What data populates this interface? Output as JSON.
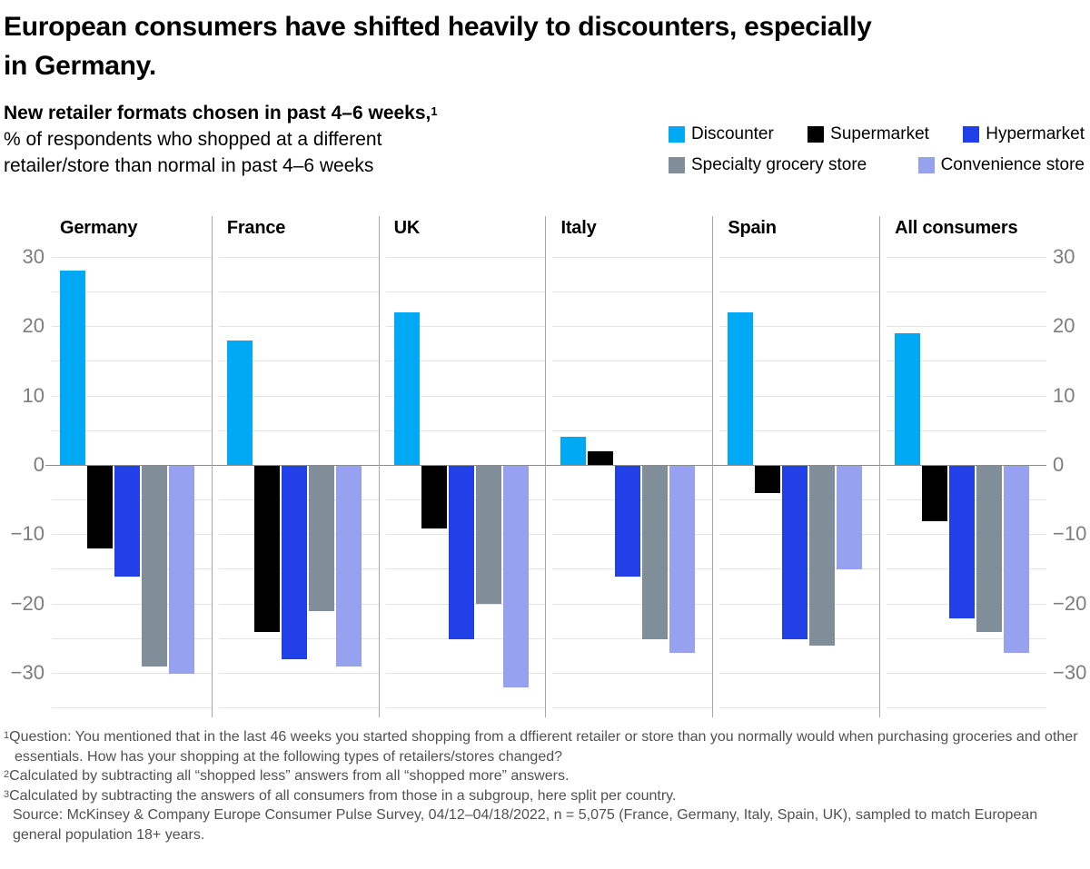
{
  "title": {
    "line1": "European consumers have shifted heavily to discounters, especially",
    "line2": "in Germany."
  },
  "subtitle": {
    "line1_bold": "New retailer formats chosen in past 4–6 weeks,",
    "line1_sup": "1",
    "line2": "% of respondents who shopped at a different",
    "line3": "retailer/store than normal in past 4–6 weeks"
  },
  "legend": [
    {
      "label": "Discounter",
      "color": "#00a9f4"
    },
    {
      "label": "Supermarket",
      "color": "#000000"
    },
    {
      "label": "Hypermarket",
      "color": "#2240e8"
    },
    {
      "label": "Specialty grocery store",
      "color": "#7f8e98"
    },
    {
      "label": "Convenience store",
      "color": "#96a1f0"
    }
  ],
  "chart_data": {
    "type": "bar",
    "groups": [
      "Germany",
      "France",
      "UK",
      "Italy",
      "Spain",
      "All consumers"
    ],
    "series": [
      {
        "name": "Discounter",
        "color": "#00a9f4",
        "values": [
          28,
          18,
          22,
          4,
          22,
          19
        ]
      },
      {
        "name": "Supermarket",
        "color": "#000000",
        "values": [
          -12,
          -24,
          -9,
          2,
          -4,
          -8
        ]
      },
      {
        "name": "Hypermarket",
        "color": "#2240e8",
        "values": [
          -16,
          -28,
          -25,
          -16,
          -25,
          -22
        ]
      },
      {
        "name": "Specialty grocery store",
        "color": "#7f8e98",
        "values": [
          -29,
          -21,
          -20,
          -25,
          -26,
          -24
        ]
      },
      {
        "name": "Convenience store",
        "color": "#96a1f0",
        "values": [
          -30,
          -29,
          -32,
          -27,
          -15,
          -27
        ]
      }
    ],
    "ylim": [
      -35,
      30
    ],
    "gridline_step": 5,
    "grid": true,
    "legend_position": "top-right",
    "yticks": [
      {
        "value": 30,
        "label": "30"
      },
      {
        "value": 20,
        "label": "20"
      },
      {
        "value": 10,
        "label": "10"
      },
      {
        "value": 0,
        "label": "0"
      },
      {
        "value": -10,
        "label": "−10"
      },
      {
        "value": -20,
        "label": "−20"
      },
      {
        "value": -30,
        "label": "−30"
      }
    ]
  },
  "colors": {
    "grid": "#e3e3e3",
    "zero": "#8c8c8c",
    "sep": "#a6a6a6",
    "axis-text": "#7d7d7d",
    "fn-text": "#515151"
  },
  "footnotes": [
    {
      "sup": "1",
      "text": "Question: You mentioned that in the last 46 weeks you started shopping from a dffierent retailer or store than you normally would when purchasing groceries and other essentials. How has your shopping at the following types of retailers/stores changed?"
    },
    {
      "sup": "2",
      "text": "Calculated by subtracting all “shopped less” answers from all “shopped more” answers."
    },
    {
      "sup": "3",
      "text": "Calculated by subtracting the answers of all consumers from those in a subgroup, here split per country."
    },
    {
      "sup": "",
      "text": "Source: McKinsey & Company Europe Consumer Pulse Survey, 04/12–04/18/2022, n = 5,075 (France, Germany, Italy, Spain, UK), sampled to match European general population 18+ years."
    }
  ]
}
